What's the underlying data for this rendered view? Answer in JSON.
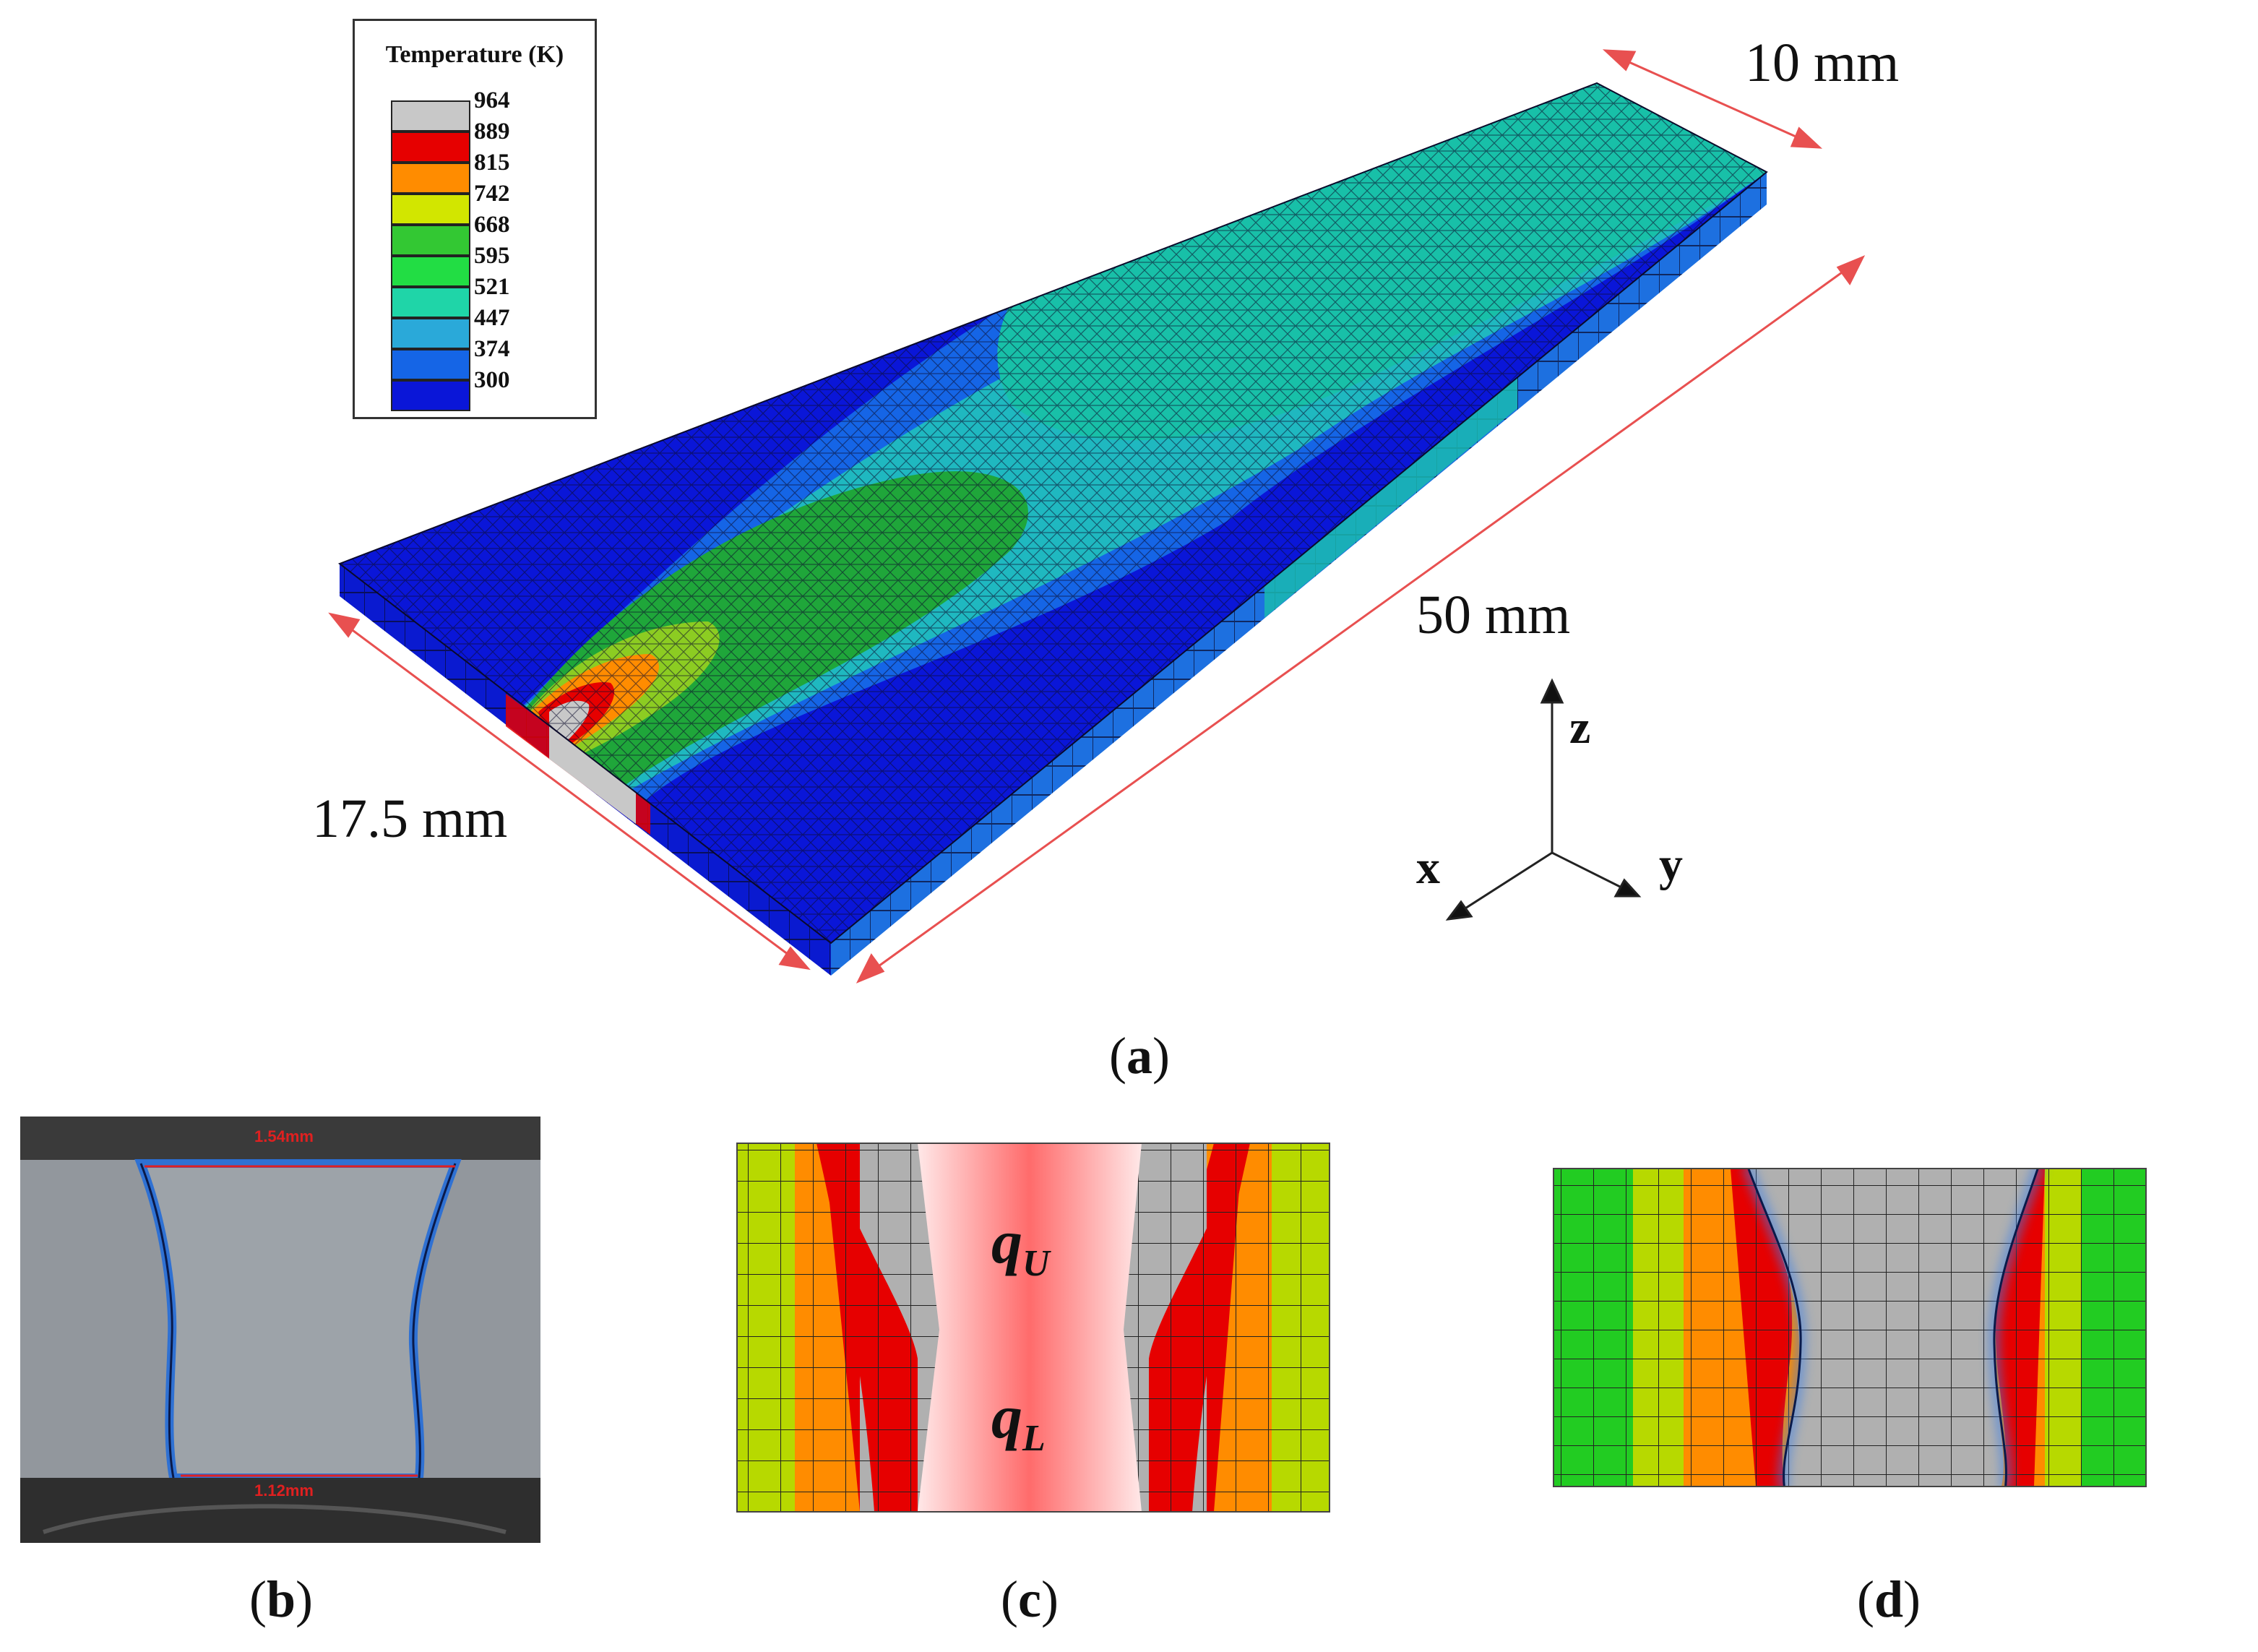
{
  "legend": {
    "title": "Temperature (K)",
    "values": [
      "964",
      "889",
      "815",
      "742",
      "668",
      "595",
      "521",
      "447",
      "374",
      "300"
    ],
    "colors": [
      "#c8c8c8",
      "#e60000",
      "#ff8c00",
      "#d2e600",
      "#33c833",
      "#22dd44",
      "#1fd5a8",
      "#2aa9d9",
      "#1565e6",
      "#0a16d8"
    ]
  },
  "dimensions": {
    "width_top": "10 mm",
    "length": "50 mm",
    "width_front": "17.5 mm"
  },
  "axes": {
    "z": "z",
    "x": "x",
    "y": "y"
  },
  "captions": {
    "a": {
      "open": "(",
      "letter": "a",
      "close": ")"
    },
    "b": {
      "open": "(",
      "letter": "b",
      "close": ")"
    },
    "c": {
      "open": "(",
      "letter": "c",
      "close": ")"
    },
    "d": {
      "open": "(",
      "letter": "d",
      "close": ")"
    }
  },
  "panel_b": {
    "top_measure": "1.54mm",
    "bottom_measure": "1.12mm"
  },
  "panel_c": {
    "upper_label": "q",
    "upper_sub": "U",
    "lower_label": "q",
    "lower_sub": "L"
  },
  "colors": {
    "dimension_arrow": "#e85050",
    "mesh_line": "#202020",
    "fusion_line": "#2a6fd6"
  }
}
